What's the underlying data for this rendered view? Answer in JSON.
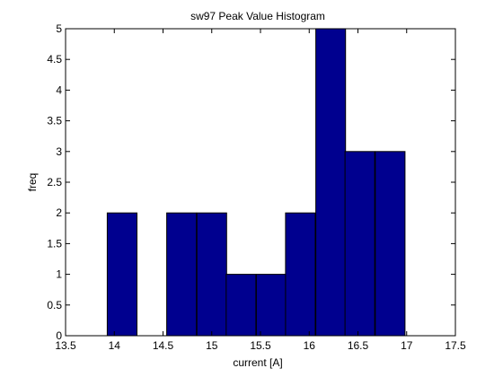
{
  "chart_data": {
    "type": "bar",
    "title": "sw97 Peak Value Histogram",
    "xlabel": "current [A]",
    "ylabel": "freq",
    "xlim": [
      13.5,
      17.5
    ],
    "ylim": [
      0,
      5
    ],
    "bar_width": 0.305,
    "x": [
      14.08,
      14.39,
      14.69,
      15.0,
      15.3,
      15.61,
      15.91,
      16.22,
      16.52,
      16.83
    ],
    "values": [
      2,
      0,
      2,
      2,
      1,
      1,
      2,
      5,
      3,
      3
    ],
    "xticks": [
      13.5,
      14,
      14.5,
      15,
      15.5,
      16,
      16.5,
      17,
      17.5
    ],
    "xtick_labels": [
      "13.5",
      "14",
      "14.5",
      "15",
      "15.5",
      "16",
      "16.5",
      "17",
      "17.5"
    ],
    "yticks": [
      0,
      0.5,
      1,
      1.5,
      2,
      2.5,
      3,
      3.5,
      4,
      4.5,
      5
    ],
    "ytick_labels": [
      "0",
      "0.5",
      "1",
      "1.5",
      "2",
      "2.5",
      "3",
      "3.5",
      "4",
      "4.5",
      "5"
    ],
    "grid": false,
    "colors": {
      "bar_fill": "#00008f",
      "bar_edge": "#000000",
      "axes": "#000000",
      "background": "#ffffff"
    }
  }
}
